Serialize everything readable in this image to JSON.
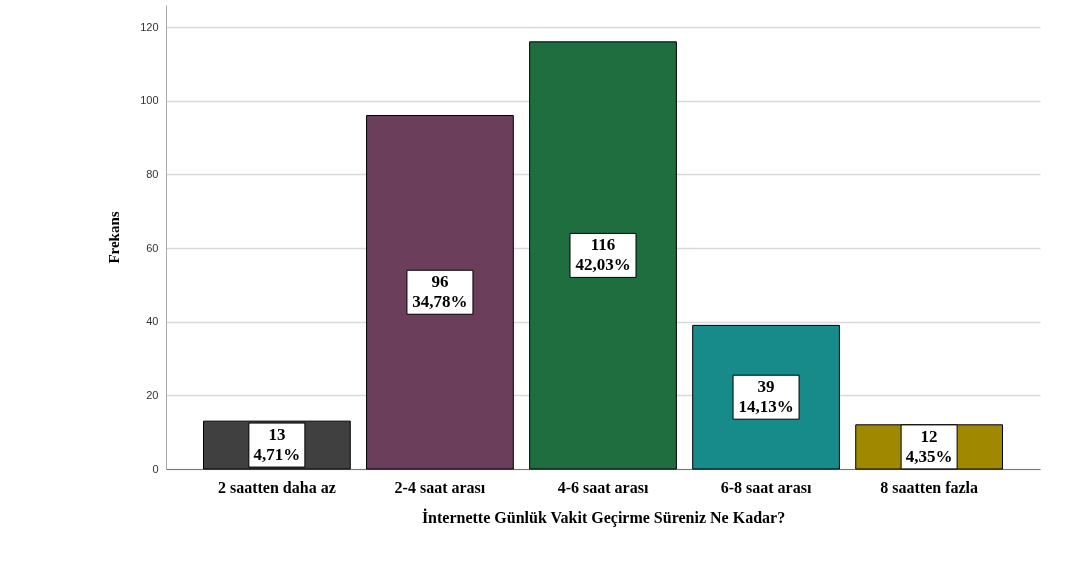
{
  "chart_data": {
    "type": "bar",
    "xlabel": "İnternette Günlük Vakit Geçirme Süreniz Ne Kadar?",
    "ylabel": "Frekans",
    "categories": [
      "2 saatten daha az",
      "2-4 saat arası",
      "4-6 saat arası",
      "6-8 saat arası",
      "8 saatten fazla"
    ],
    "values": [
      13,
      96,
      116,
      39,
      12
    ],
    "colors": [
      "#404040",
      "#6b3f5c",
      "#1e6e40",
      "#178a8a",
      "#a08800"
    ],
    "value_labels": [
      "13\n4,71%",
      "96\n34,78%",
      "116\n42,03%",
      "39\n14,13%",
      "12\n4,35%"
    ],
    "ylim": [
      0,
      126
    ],
    "yticks": [
      0,
      20,
      40,
      60,
      80,
      100,
      120
    ],
    "grid": "y"
  }
}
